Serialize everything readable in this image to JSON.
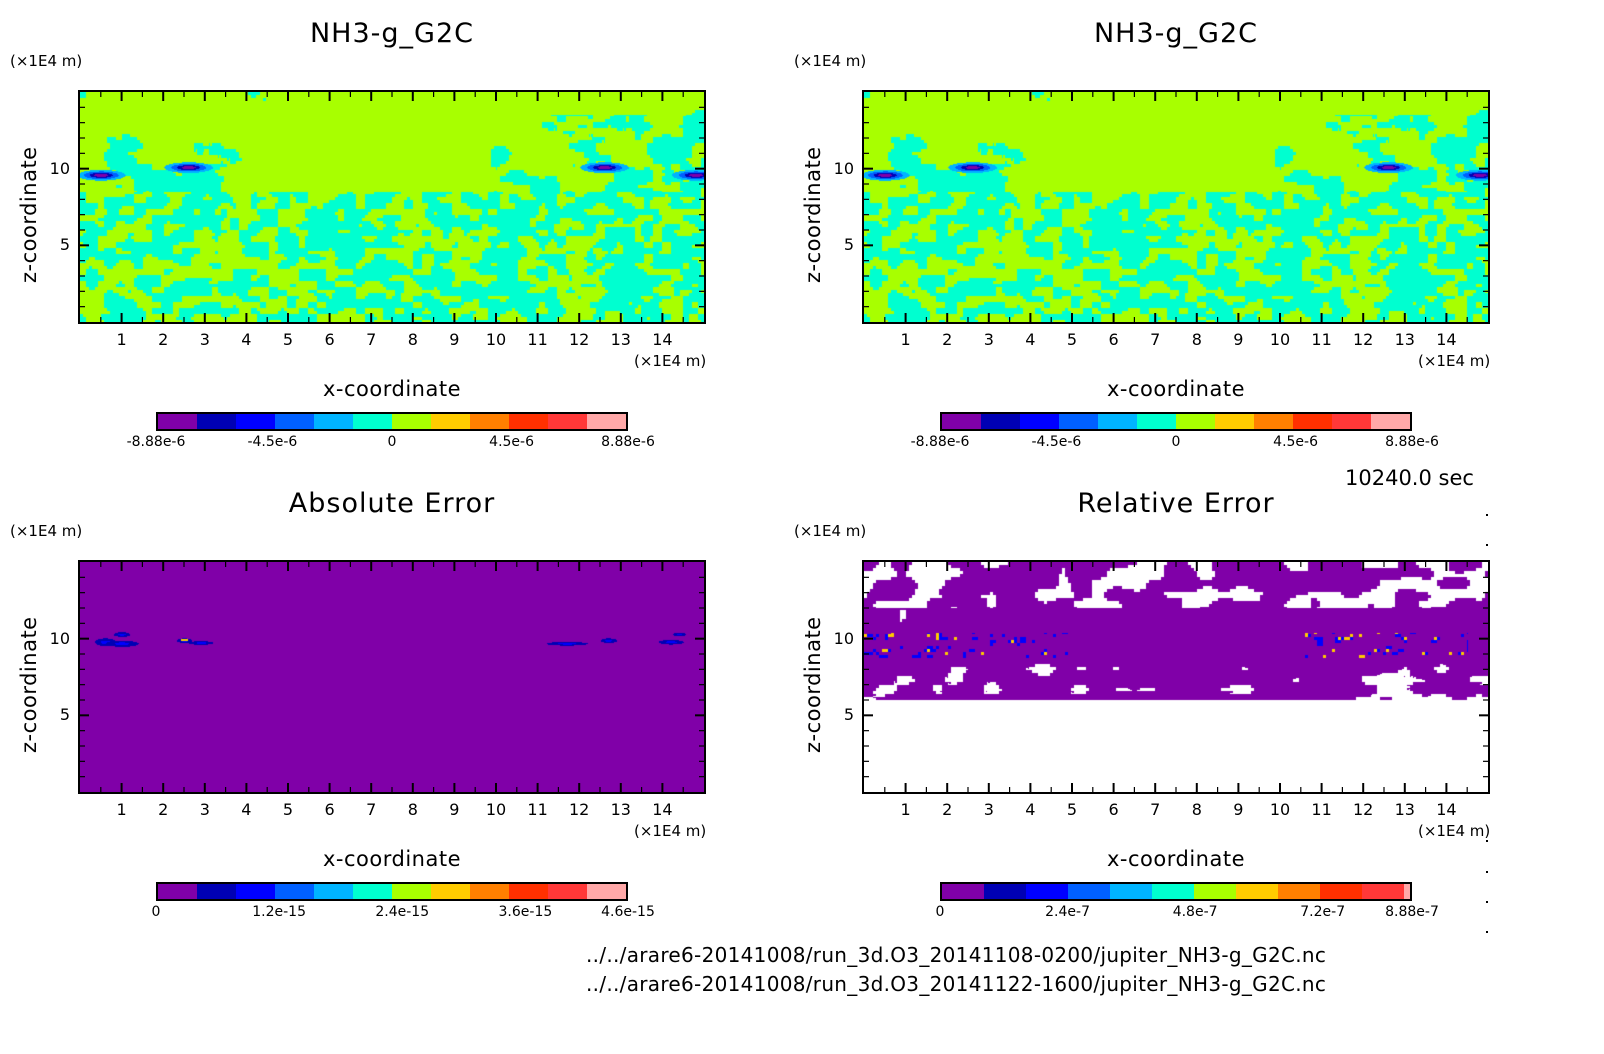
{
  "time_label": "10240.0 sec",
  "file_paths": [
    "../../arare6-20141008/run_3d.O3_20141108-0200/jupiter_NH3-g_G2C.nc",
    "../../arare6-20141008/run_3d.O3_20141122-1600/jupiter_NH3-g_G2C.nc"
  ],
  "palette": [
    "#8000a8",
    "#0000b4",
    "#0000ff",
    "#0060ff",
    "#00b4ff",
    "#00ffd0",
    "#a8ff00",
    "#ffcc00",
    "#ff8000",
    "#ff3000",
    "#ff3838",
    "#ffa8a8"
  ],
  "chart_data": [
    {
      "type": "heatmap",
      "id": "top-left",
      "title": "NH3-g_G2C",
      "xlabel": "x-coordinate",
      "ylabel": "z-coordinate",
      "x_unit": "(×1E4 m)",
      "y_unit": "(×1E4 m)",
      "xlim": [
        0,
        15
      ],
      "ylim": [
        0,
        15
      ],
      "x_ticks": [
        "1",
        "2",
        "3",
        "4",
        "5",
        "6",
        "7",
        "8",
        "9",
        "10",
        "11",
        "12",
        "13",
        "14"
      ],
      "y_ticks": [
        "5",
        "10"
      ],
      "colorbar": {
        "range": [
          -8.88e-06,
          8.88e-06
        ],
        "levels": 12,
        "tick_labels": [
          "-8.88e-6",
          "-4.5e-6",
          "0",
          "4.5e-6",
          "8.88e-6"
        ]
      },
      "field": "perturbation"
    },
    {
      "type": "heatmap",
      "id": "top-right",
      "title": "NH3-g_G2C",
      "xlabel": "x-coordinate",
      "ylabel": "z-coordinate",
      "x_unit": "(×1E4 m)",
      "y_unit": "(×1E4 m)",
      "xlim": [
        0,
        15
      ],
      "ylim": [
        0,
        15
      ],
      "x_ticks": [
        "1",
        "2",
        "3",
        "4",
        "5",
        "6",
        "7",
        "8",
        "9",
        "10",
        "11",
        "12",
        "13",
        "14"
      ],
      "y_ticks": [
        "5",
        "10"
      ],
      "colorbar": {
        "range": [
          -8.88e-06,
          8.88e-06
        ],
        "levels": 12,
        "tick_labels": [
          "-8.88e-6",
          "-4.5e-6",
          "0",
          "4.5e-6",
          "8.88e-6"
        ]
      },
      "field": "perturbation"
    },
    {
      "type": "heatmap",
      "id": "bottom-left",
      "title": "Absolute Error",
      "xlabel": "x-coordinate",
      "ylabel": "z-coordinate",
      "x_unit": "(×1E4 m)",
      "y_unit": "(×1E4 m)",
      "xlim": [
        0,
        15
      ],
      "ylim": [
        0,
        15
      ],
      "x_ticks": [
        "1",
        "2",
        "3",
        "4",
        "5",
        "6",
        "7",
        "8",
        "9",
        "10",
        "11",
        "12",
        "13",
        "14"
      ],
      "y_ticks": [
        "5",
        "10"
      ],
      "colorbar": {
        "range": [
          0,
          4.6e-15
        ],
        "levels": 12,
        "tick_labels": [
          "0",
          "1.2e-15",
          "2.4e-15",
          "3.6e-15",
          "4.6e-15"
        ]
      },
      "field": "abs_error"
    },
    {
      "type": "heatmap",
      "id": "bottom-right",
      "title": "Relative Error",
      "xlabel": "x-coordinate",
      "ylabel": "z-coordinate",
      "x_unit": "(×1E4 m)",
      "y_unit": "(×1E4 m)",
      "xlim": [
        0,
        15
      ],
      "ylim": [
        0,
        15
      ],
      "x_ticks": [
        "1",
        "2",
        "3",
        "4",
        "5",
        "6",
        "7",
        "8",
        "9",
        "10",
        "11",
        "12",
        "13",
        "14"
      ],
      "y_ticks": [
        "5",
        "10"
      ],
      "colorbar": {
        "range": [
          0,
          8.88e-07
        ],
        "levels": 12,
        "tick_labels": [
          "0",
          "2.4e-7",
          "4.8e-7",
          "7.2e-7",
          "8.88e-7"
        ]
      },
      "field": "rel_error"
    }
  ]
}
